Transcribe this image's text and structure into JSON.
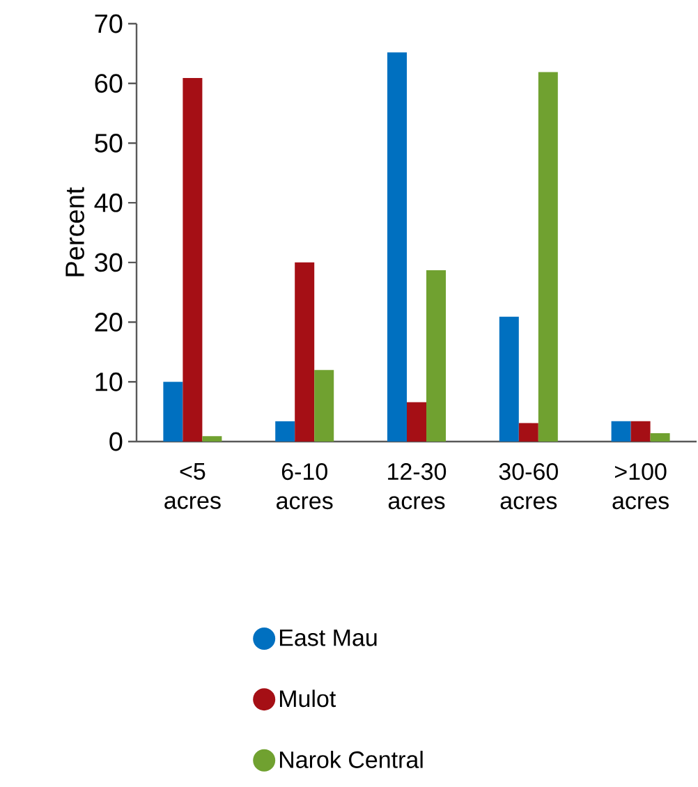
{
  "chart_data": {
    "type": "bar",
    "ylabel": "Percent",
    "categories": [
      "<5 acres",
      "6-10 acres",
      "12-30 acres",
      "30-60 acres",
      ">100 acres"
    ],
    "series": [
      {
        "name": "East Mau",
        "color": "#0070c0",
        "values": [
          10,
          3.4,
          65.2,
          20.9,
          3.4
        ]
      },
      {
        "name": "Mulot",
        "color": "#a50f15",
        "values": [
          60.9,
          30,
          6.6,
          3.1,
          3.4
        ]
      },
      {
        "name": "Narok Central",
        "color": "#70a130",
        "values": [
          0.9,
          12,
          28.7,
          61.9,
          1.4
        ]
      }
    ],
    "ylim": [
      0,
      70
    ],
    "yticks": [
      0,
      10,
      20,
      30,
      40,
      50,
      60,
      70
    ],
    "grid": false,
    "legend": "bottom"
  }
}
